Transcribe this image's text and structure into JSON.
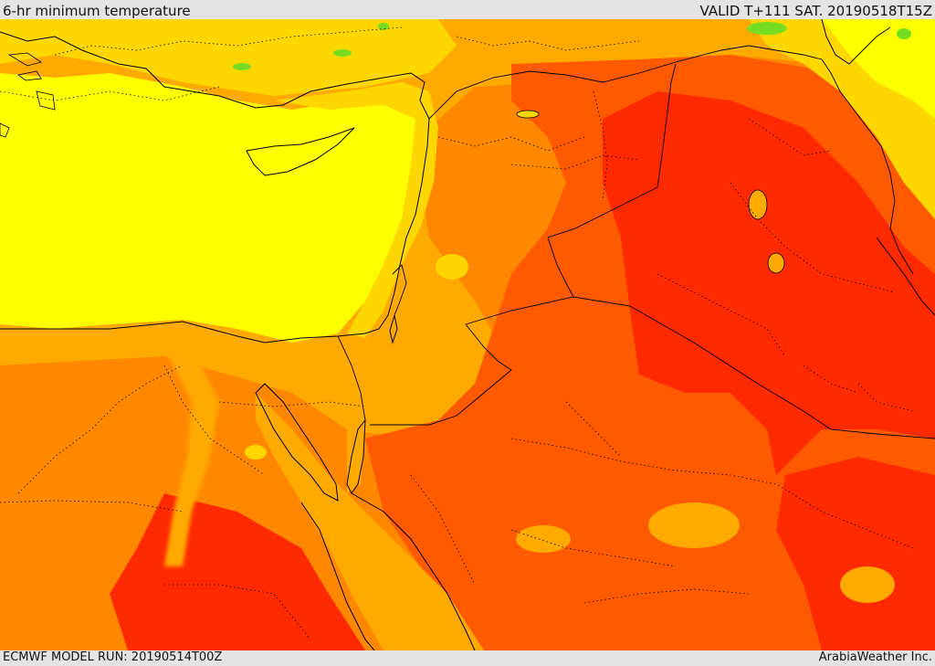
{
  "header": {
    "title": "6-hr minimum temperature",
    "valid": "VALID T+111 SAT. 20190518T15Z"
  },
  "footer": {
    "model_run": "ECMWF MODEL RUN: 20190514T00Z",
    "credit": "ArabiaWeather Inc."
  },
  "palette": {
    "green": "#77dd22",
    "yellow": "#ffff00",
    "gold": "#ffd700",
    "amber": "#ffaa00",
    "orange": "#ff8800",
    "dark_orange": "#ff5a00",
    "red": "#ff2a00"
  }
}
